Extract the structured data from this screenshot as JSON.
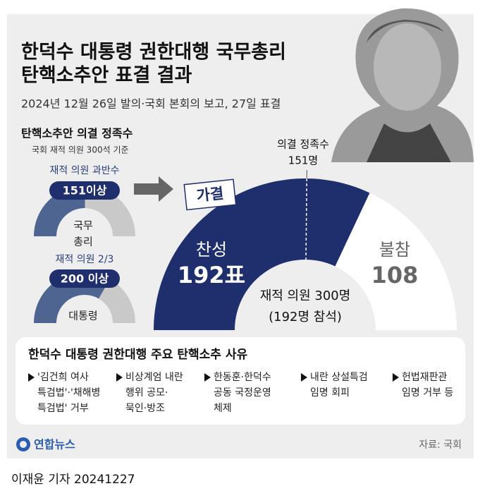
{
  "title_lines": [
    "한덕수 대통령 권한대행 국무총리",
    "탄핵소추안 표결 결과"
  ],
  "subtitle": "2024년 12월 26일 발의·국회 본회의 보고, 27일 표결",
  "quorum": {
    "title": "탄핵소추안 의결 정족수",
    "note": "국회 재적 의원 300석 기준",
    "items": [
      {
        "label": "재적 의원 과반수",
        "value": 151,
        "value_label": "151이상",
        "target": [
          "국무",
          "총리"
        ]
      },
      {
        "label": "재적 의원 2/3",
        "value": 200,
        "value_label": "200 이상",
        "target": [
          "대통령"
        ]
      }
    ]
  },
  "chart_data": {
    "type": "half-donut",
    "categories": [
      "찬성",
      "불참"
    ],
    "values": [
      192,
      108
    ],
    "value_labels": [
      "192표",
      "108"
    ],
    "colors": [
      "#1f2f6e",
      "#ffffff"
    ],
    "label_colors": [
      "#ffffff",
      "#666666"
    ],
    "badge": "가결",
    "threshold": 151,
    "threshold_title": "의결 정족수",
    "threshold_label": "151명",
    "center_lines": [
      "재적 의원 300명",
      "(192명 참석)"
    ]
  },
  "reasons": {
    "title": "한덕수 대통령 권한대행 주요 탄핵소추 사유",
    "items": [
      [
        "'김건희 여사",
        "특검법'·'채해병",
        "특검법' 거부"
      ],
      [
        "비상계엄 내란",
        "행위 공모·",
        "묵인·방조"
      ],
      [
        "한동훈·한덕수",
        "공동 국정운영",
        "체제"
      ],
      [
        "내란 상설특검",
        "임명 회피"
      ],
      [
        "헌법재판관",
        "임명 거부 등"
      ]
    ]
  },
  "logo": "연합뉴스",
  "source": "자료: 국회",
  "byline": "이재윤 기자  20241227"
}
